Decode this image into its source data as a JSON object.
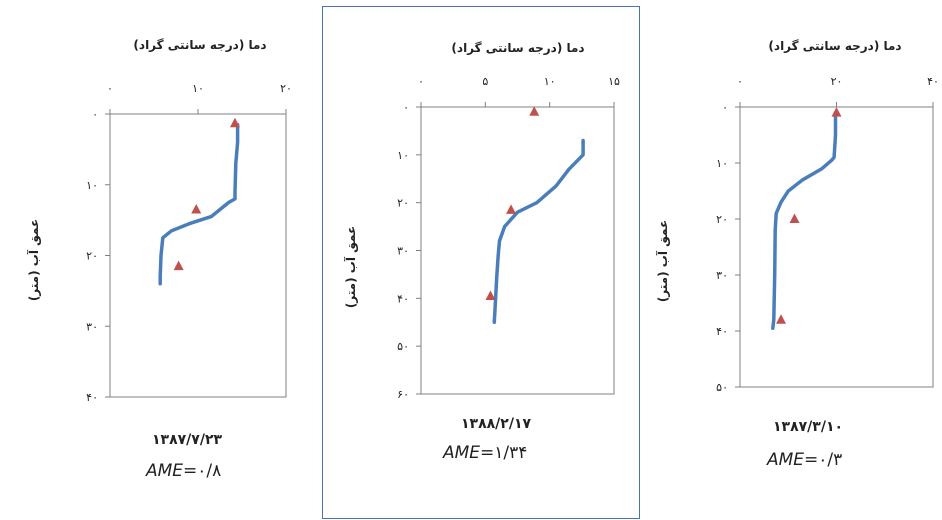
{
  "colors": {
    "line": "#4a7ebb",
    "marker": "#c0504d",
    "frame": "#4a72b0",
    "axis": "#808080"
  },
  "chart_data": [
    {
      "type": "line",
      "xlabel": "دما (درجه سانتی گراد)",
      "ylabel": "عمق آب (متر)",
      "xlim": [
        0,
        20
      ],
      "ylim": [
        0,
        40
      ],
      "x_ticks": [
        0,
        10,
        20
      ],
      "x_tick_labels": [
        "۰",
        "۱۰",
        "۲۰"
      ],
      "y_ticks": [
        0,
        10,
        20,
        30,
        40
      ],
      "y_tick_labels": [
        "۰",
        "۱۰",
        "۲۰",
        "۳۰",
        "۴۰"
      ],
      "date": "۱۳۸۷/۷/۲۳",
      "ame_label": "AME=",
      "ame_value": "۰/۸",
      "series": [
        {
          "kind": "line",
          "points": [
            [
              14.5,
              1.5
            ],
            [
              14.5,
              4
            ],
            [
              14.3,
              7
            ],
            [
              14.2,
              11
            ],
            [
              14.2,
              12
            ],
            [
              13.5,
              12.5
            ],
            [
              12.5,
              13.5
            ],
            [
              11.5,
              14.5
            ],
            [
              9,
              15.5
            ],
            [
              7,
              16.5
            ],
            [
              6,
              17.5
            ],
            [
              5.8,
              20
            ],
            [
              5.7,
              23
            ],
            [
              5.7,
              24
            ]
          ]
        },
        {
          "kind": "marker",
          "points": [
            [
              14.2,
              1.3
            ],
            [
              9.8,
              13.5
            ],
            [
              7.8,
              21.5
            ]
          ]
        }
      ]
    },
    {
      "type": "line",
      "xlabel": "دما (درجه سانتی گراد)",
      "ylabel": "عمق آب (متر)",
      "xlim": [
        0,
        15
      ],
      "ylim": [
        0,
        60
      ],
      "x_ticks": [
        0,
        5,
        10,
        15
      ],
      "x_tick_labels": [
        "۰",
        "۵",
        "۱۰",
        "۱۵"
      ],
      "y_ticks": [
        0,
        10,
        20,
        30,
        40,
        50,
        60
      ],
      "y_tick_labels": [
        "۰",
        "۱۰",
        "۲۰",
        "۳۰",
        "۴۰",
        "۵۰",
        "۶۰"
      ],
      "date": "۱۳۸۸/۲/۱۷",
      "ame_label": "AME=",
      "ame_value": "۱/۳۴",
      "series": [
        {
          "kind": "line",
          "points": [
            [
              12.6,
              7
            ],
            [
              12.6,
              10
            ],
            [
              11.5,
              13
            ],
            [
              10.5,
              16.5
            ],
            [
              9,
              20
            ],
            [
              7.5,
              22
            ],
            [
              6.5,
              25
            ],
            [
              6.1,
              28
            ],
            [
              6,
              31
            ],
            [
              5.9,
              35
            ],
            [
              5.8,
              40
            ],
            [
              5.7,
              45
            ],
            [
              5.7,
              44.5
            ]
          ]
        },
        {
          "kind": "marker",
          "points": [
            [
              8.8,
              1
            ],
            [
              7,
              21.5
            ],
            [
              5.4,
              39.5
            ]
          ]
        }
      ]
    },
    {
      "type": "line",
      "xlabel": "دما (درجه سانتی گراد)",
      "ylabel": "عمق آب (متر)",
      "xlim": [
        0,
        40
      ],
      "ylim": [
        0,
        50
      ],
      "x_ticks": [
        0,
        20,
        40
      ],
      "x_tick_labels": [
        "۰",
        "۲۰",
        "۴۰"
      ],
      "y_ticks": [
        0,
        10,
        20,
        30,
        40,
        50
      ],
      "y_tick_labels": [
        "۰",
        "۱۰",
        "۲۰",
        "۳۰",
        "۴۰",
        "۵۰"
      ],
      "date": "۱۳۸۷/۳/۱۰",
      "ame_label": "AME=",
      "ame_value": "۰/۳",
      "series": [
        {
          "kind": "line",
          "points": [
            [
              19.8,
              1
            ],
            [
              19.8,
              5
            ],
            [
              19.5,
              9
            ],
            [
              19,
              9.5
            ],
            [
              17,
              11
            ],
            [
              13,
              13
            ],
            [
              10,
              15
            ],
            [
              8.5,
              17
            ],
            [
              7.5,
              19
            ],
            [
              7.3,
              22
            ],
            [
              7.2,
              30
            ],
            [
              7,
              38
            ],
            [
              6.8,
              39.5
            ]
          ]
        },
        {
          "kind": "marker",
          "points": [
            [
              20,
              1
            ],
            [
              11.3,
              20
            ],
            [
              8.5,
              38
            ]
          ]
        }
      ]
    }
  ]
}
